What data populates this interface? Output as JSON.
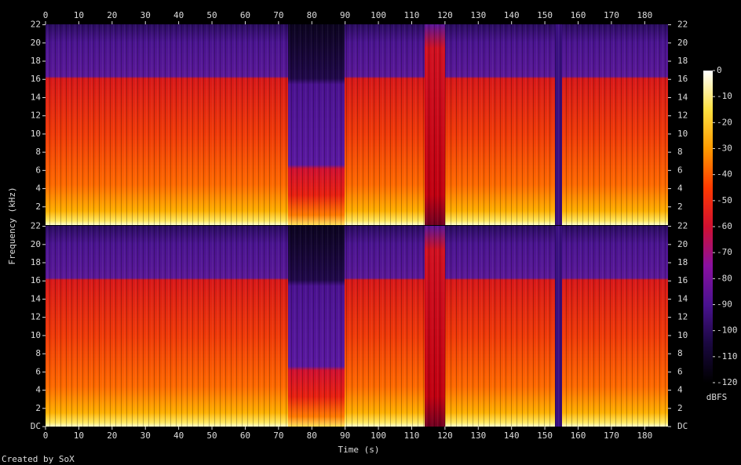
{
  "chart_data": {
    "type": "spectrogram",
    "x_label": "Time (s)",
    "y_label": "Frequency (kHz)",
    "xlim": [
      0,
      187
    ],
    "xticks": [
      0,
      10,
      20,
      30,
      40,
      50,
      60,
      70,
      80,
      90,
      100,
      110,
      120,
      130,
      140,
      150,
      160,
      170,
      180
    ],
    "ylim": [
      0,
      22.05
    ],
    "yticks": [
      {
        "value": 0,
        "label": "DC"
      },
      2,
      4,
      6,
      8,
      10,
      12,
      14,
      16,
      18,
      20,
      22
    ],
    "colorbar": {
      "label": "dBFS",
      "lim": [
        -120,
        0
      ],
      "ticks": [
        0,
        -10,
        -20,
        -30,
        -40,
        -50,
        -60,
        -70,
        -80,
        -90,
        -100,
        -110,
        -120
      ],
      "colors": [
        "#000000",
        "#1a0840",
        "#4a1290",
        "#8a10a0",
        "#d01030",
        "#ff3a00",
        "#ff9a00",
        "#ffe040",
        "#ffffff"
      ]
    }
  },
  "footer": "Created by SoX"
}
